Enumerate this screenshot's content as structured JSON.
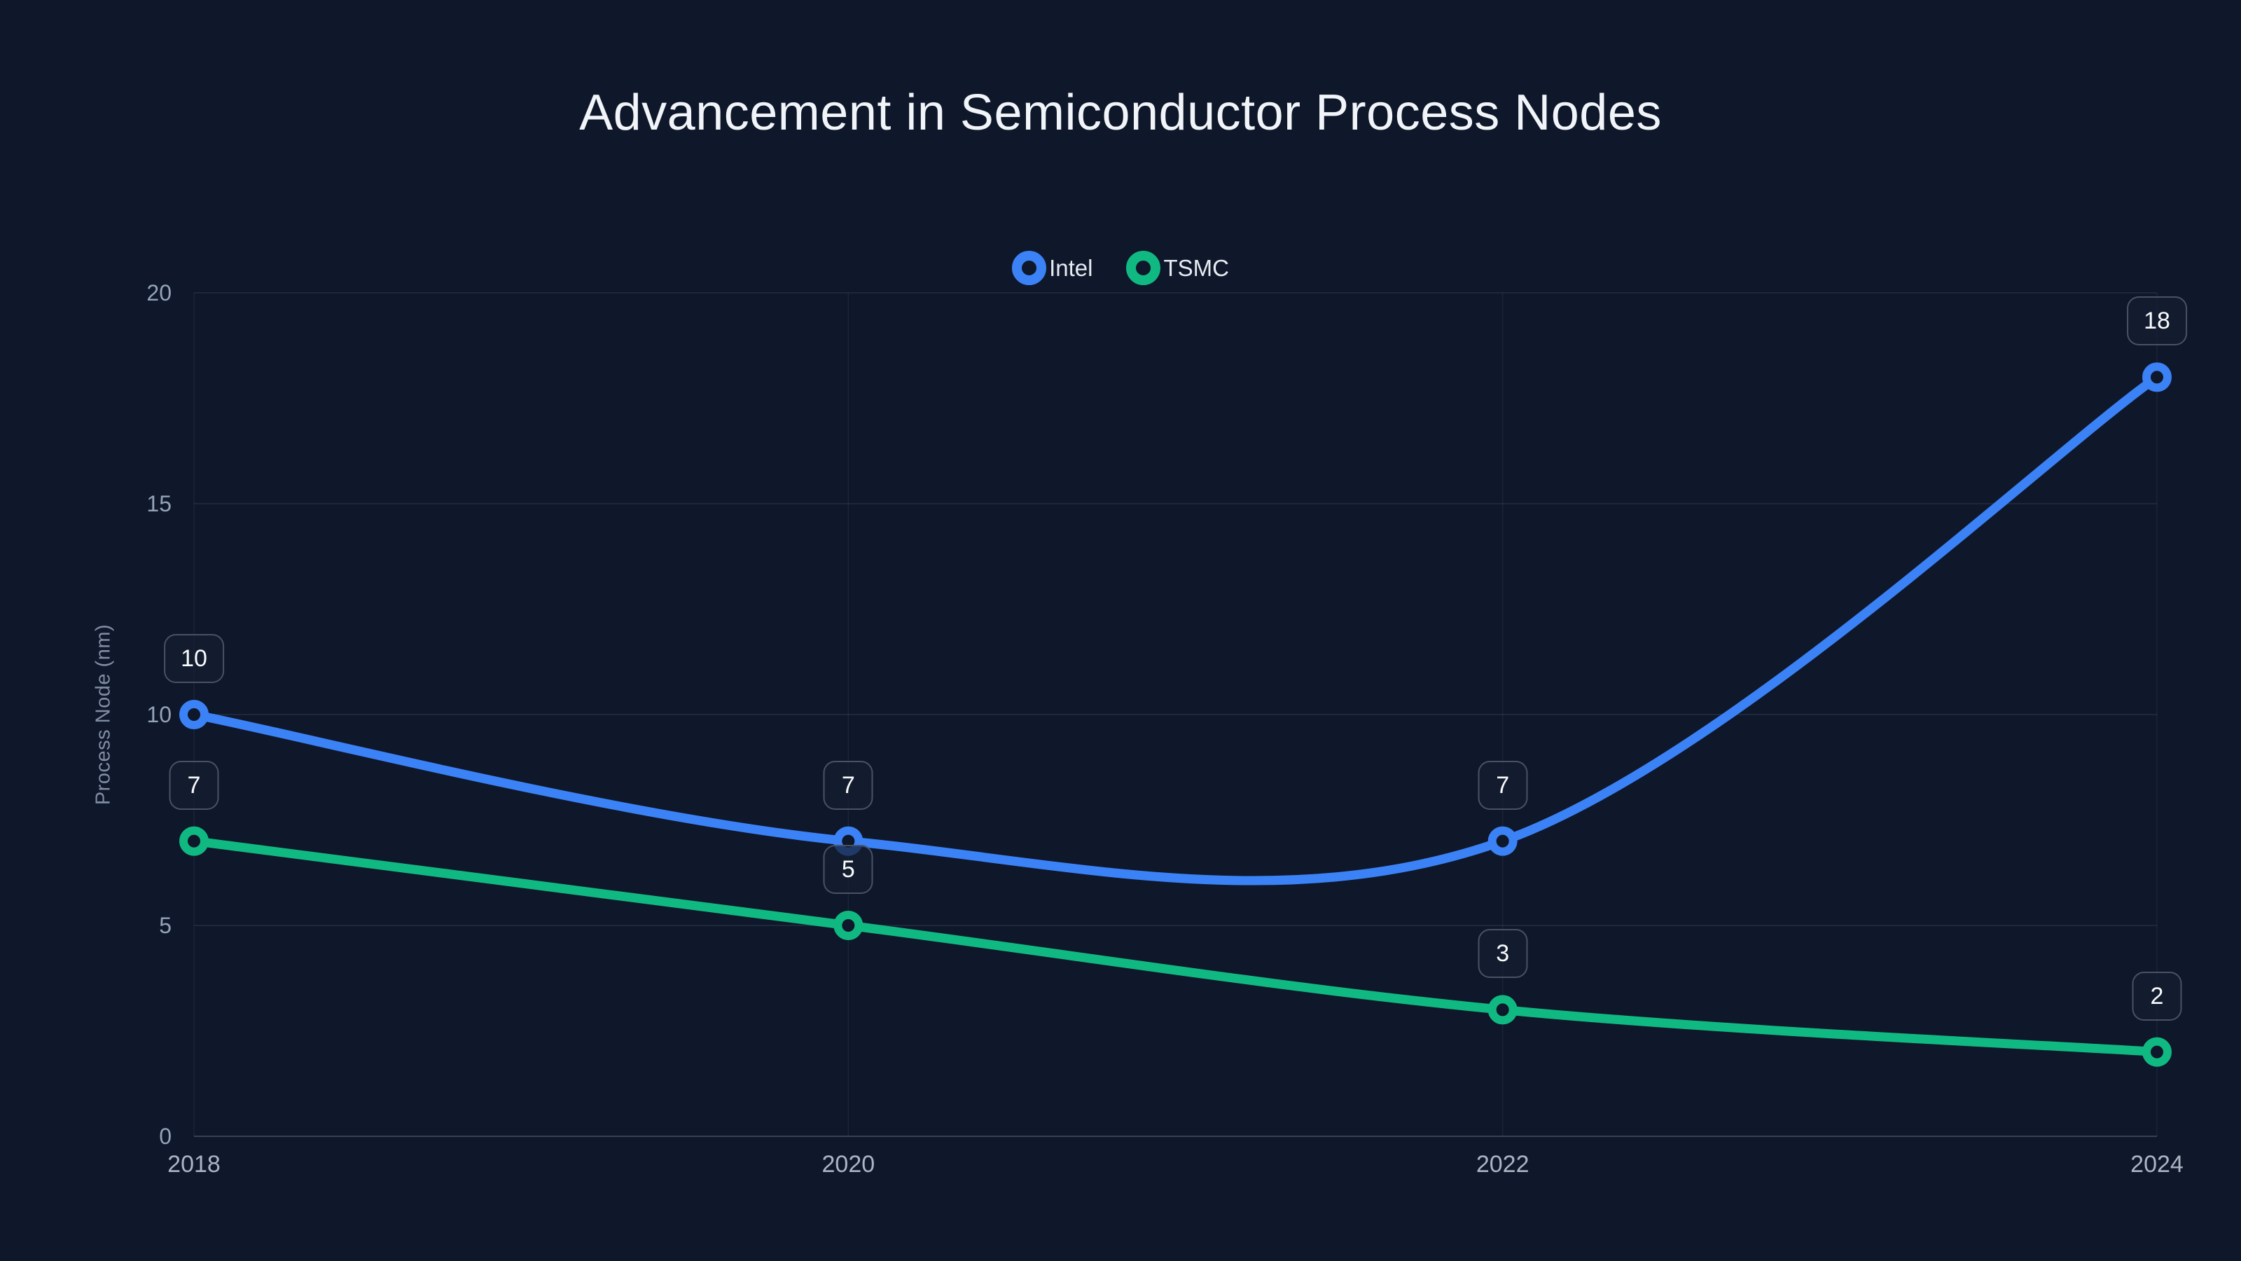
{
  "colors": {
    "background": "#0f172a",
    "grid_horizontal": "rgba(148,163,184,0.16)",
    "grid_vertical": "rgba(148,163,184,0.10)",
    "axis_line": "rgba(148,163,184,0.30)",
    "y_tick_text": "#94a3b8",
    "x_tick_text": "#aab5c4",
    "title_text": "#f1f5f9",
    "label_box_border": "#485267",
    "label_box_background": "rgba(21,30,48,0.72)",
    "label_text": "#f8fafc",
    "intel_blue": "#3b82f6",
    "tsmc_green": "#10b981"
  },
  "chart_data": {
    "type": "line",
    "title": "Advancement in Semiconductor Process Nodes",
    "xlabel": "",
    "ylabel": "Process Node (nm)",
    "categories": [
      "2018",
      "2020",
      "2022",
      "2024"
    ],
    "x": [
      2018,
      2020,
      2022,
      2024
    ],
    "series": [
      {
        "name": "Intel",
        "color": "#3b82f6",
        "values": [
          10,
          7,
          7,
          18
        ]
      },
      {
        "name": "TSMC",
        "color": "#10b981",
        "values": [
          7,
          5,
          3,
          2
        ]
      }
    ],
    "ylim": [
      0,
      20
    ],
    "y_ticks": [
      0,
      5,
      10,
      15,
      20
    ],
    "grid": true,
    "legend_position": "top-center",
    "curve": "smooth",
    "point_labels": true,
    "point_label_values": {
      "Intel": [
        "10",
        "7",
        "7",
        "18"
      ],
      "TSMC": [
        "7",
        "5",
        "3",
        "2"
      ]
    }
  }
}
